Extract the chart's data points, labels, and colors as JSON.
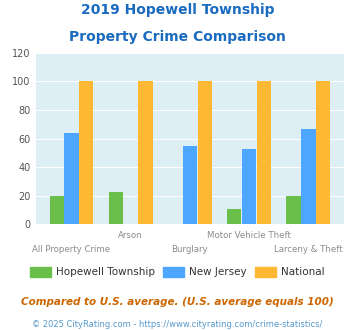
{
  "title_line1": "2019 Hopewell Township",
  "title_line2": "Property Crime Comparison",
  "categories": [
    "All Property Crime",
    "Arson",
    "Burglary",
    "Motor Vehicle Theft",
    "Larceny & Theft"
  ],
  "hopewell": [
    20,
    23,
    0,
    11,
    20
  ],
  "new_jersey": [
    64,
    0,
    55,
    53,
    67
  ],
  "national": [
    100,
    100,
    100,
    100,
    100
  ],
  "bar_colors": {
    "hopewell": "#6abf4b",
    "new_jersey": "#4da6ff",
    "national": "#ffb833"
  },
  "ylim": [
    0,
    120
  ],
  "yticks": [
    0,
    20,
    40,
    60,
    80,
    100,
    120
  ],
  "legend_labels": [
    "Hopewell Township",
    "New Jersey",
    "National"
  ],
  "footnote1": "Compared to U.S. average. (U.S. average equals 100)",
  "footnote2": "© 2025 CityRating.com - https://www.cityrating.com/crime-statistics/",
  "title_color": "#1a6bbf",
  "bg_color": "#ddeef5",
  "grid_color": "#ffffff",
  "xlabel_color": "#8b8b8b",
  "footnote1_color": "#cc6600",
  "footnote2_color": "#5599cc"
}
